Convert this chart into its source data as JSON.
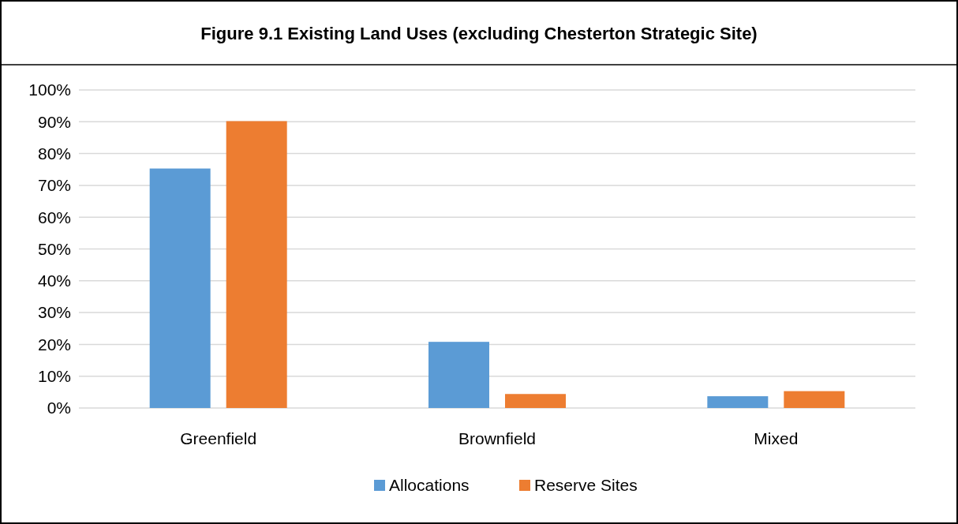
{
  "chart_data": {
    "type": "bar",
    "title": "Figure 9.1 Existing Land Uses (excluding Chesterton Strategic Site)",
    "categories": [
      "Greenfield",
      "Brownfield",
      "Mixed"
    ],
    "series": [
      {
        "name": "Allocations",
        "color": "#5b9bd5",
        "values": [
          75.3,
          20.8,
          3.7
        ]
      },
      {
        "name": "Reserve Sites",
        "color": "#ed7d31",
        "values": [
          90.2,
          4.4,
          5.3
        ]
      }
    ],
    "ylim": [
      0,
      100
    ],
    "yticks": [
      {
        "value": 0,
        "label": "0%"
      },
      {
        "value": 10,
        "label": "10%"
      },
      {
        "value": 20,
        "label": "20%"
      },
      {
        "value": 30,
        "label": "30%"
      },
      {
        "value": 40,
        "label": "40%"
      },
      {
        "value": 50,
        "label": "50%"
      },
      {
        "value": 60,
        "label": "60%"
      },
      {
        "value": 70,
        "label": "70%"
      },
      {
        "value": 80,
        "label": "80%"
      },
      {
        "value": 90,
        "label": "90%"
      },
      {
        "value": 100,
        "label": "100%"
      }
    ],
    "grid": "y",
    "legend": "bottom"
  }
}
